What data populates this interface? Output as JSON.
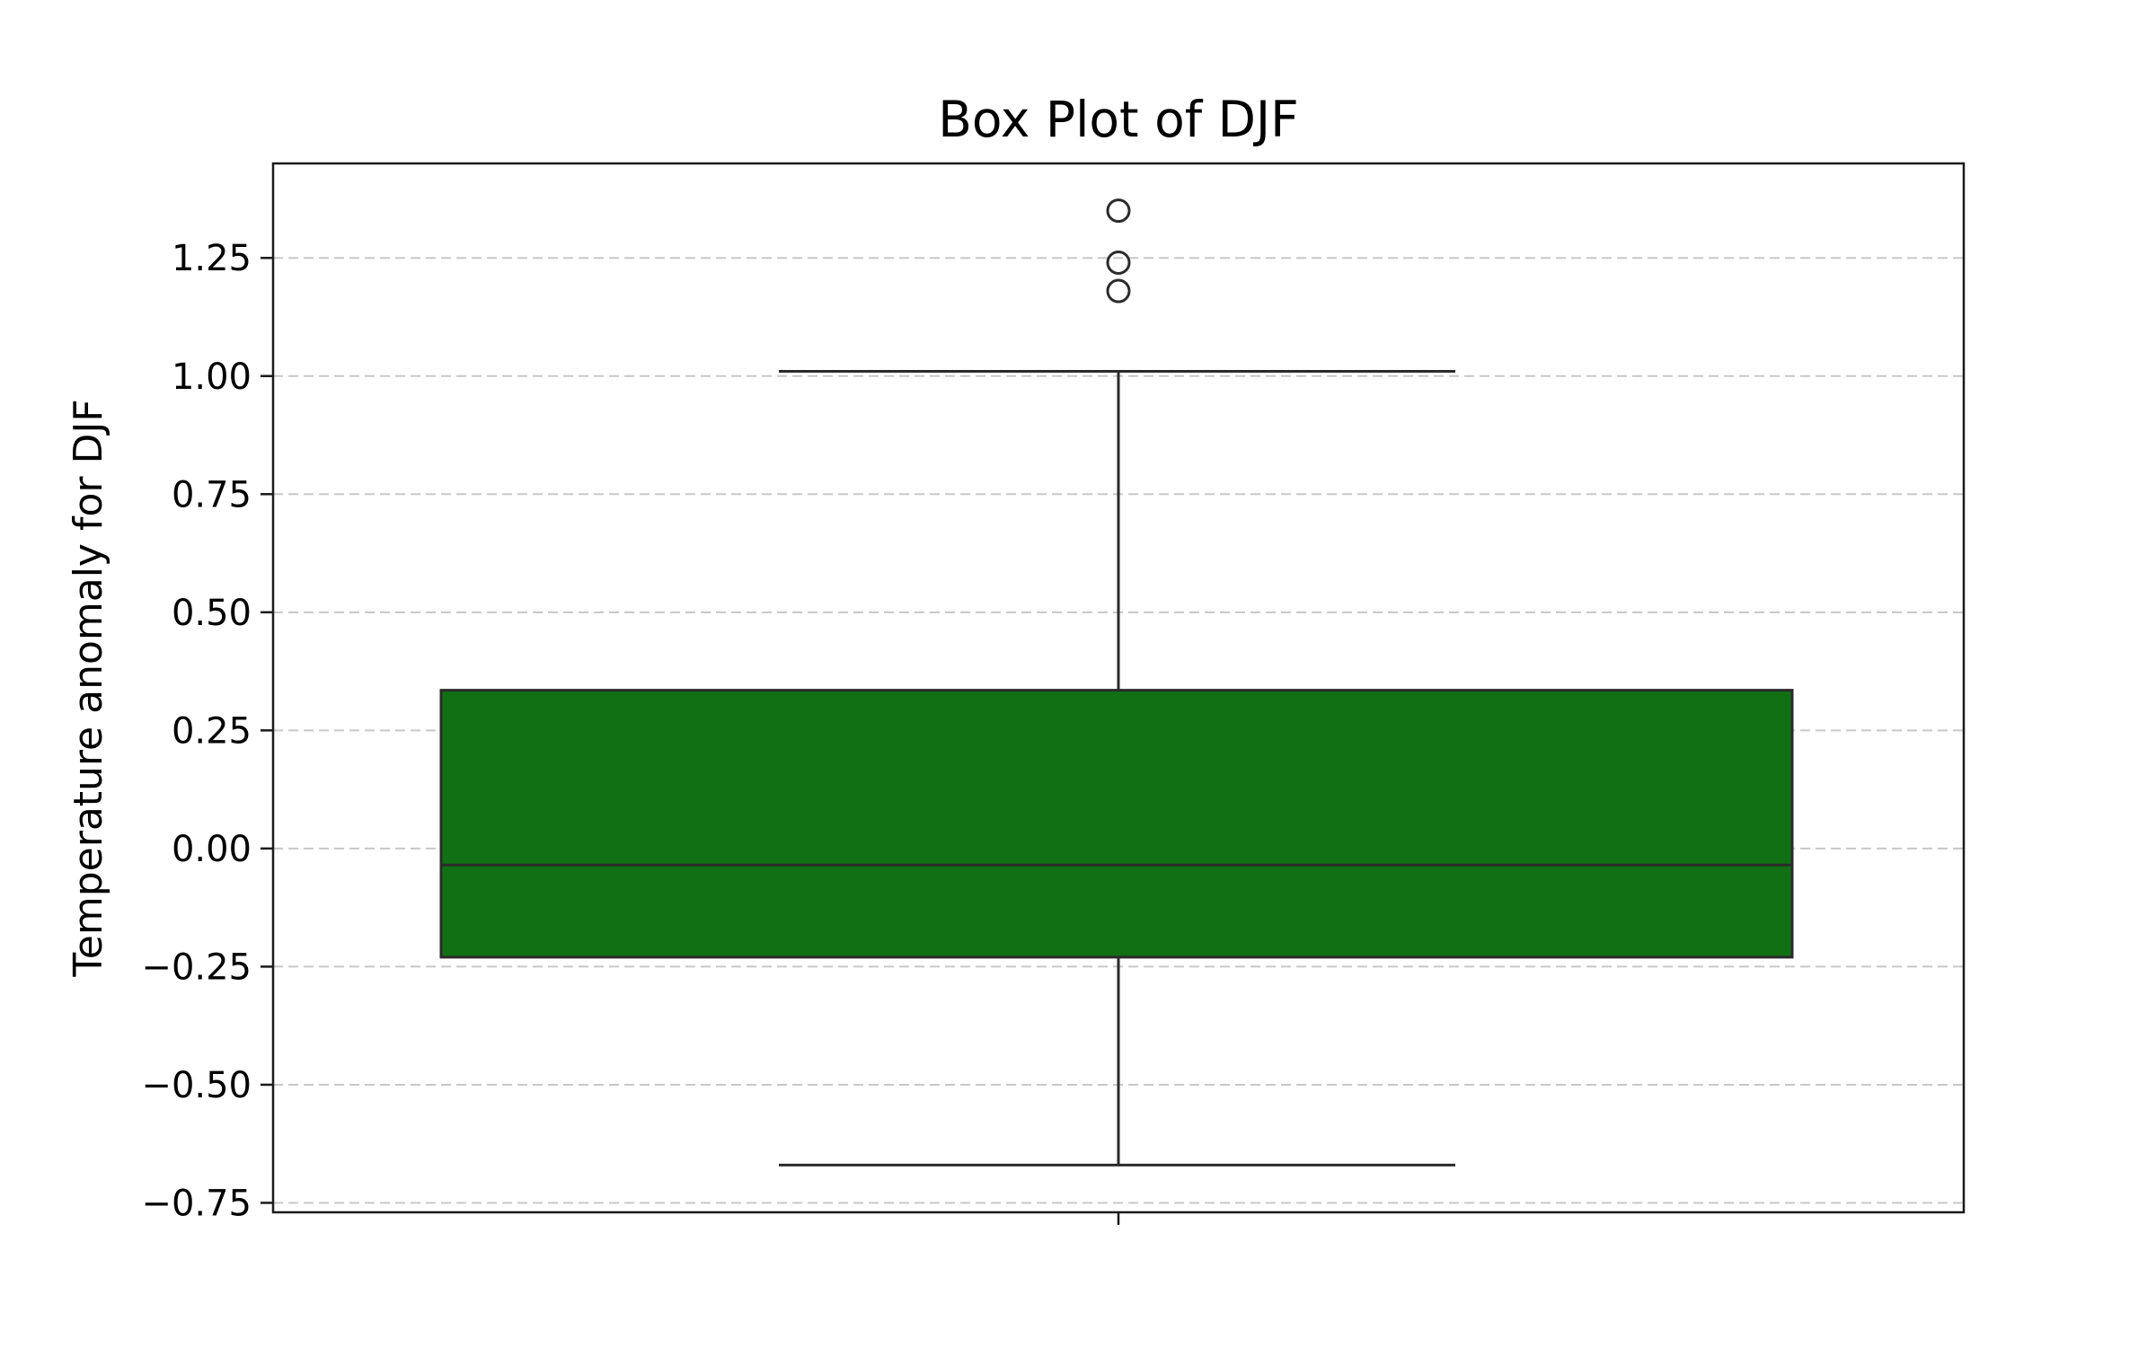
{
  "chart_data": {
    "type": "box",
    "title": "Box Plot of DJF",
    "xlabel": "",
    "ylabel": "Temperature anomaly for DJF",
    "ylim": [
      -0.77,
      1.45
    ],
    "yticks": [
      -0.75,
      -0.5,
      -0.25,
      0.0,
      0.25,
      0.5,
      0.75,
      1.0,
      1.25
    ],
    "ytick_labels": [
      "−0.75",
      "−0.50",
      "−0.25",
      "0.00",
      "0.25",
      "0.50",
      "0.75",
      "1.00",
      "1.25"
    ],
    "grid": "y-dashed",
    "box": {
      "whisker_low": -0.67,
      "q1": -0.23,
      "median": -0.035,
      "q3": 0.335,
      "whisker_high": 1.01,
      "outliers": [
        1.18,
        1.24,
        1.35
      ]
    },
    "colors": {
      "box_fill": "#117013",
      "edge": "#2b2b2b",
      "grid": "#c8c8c8"
    }
  }
}
